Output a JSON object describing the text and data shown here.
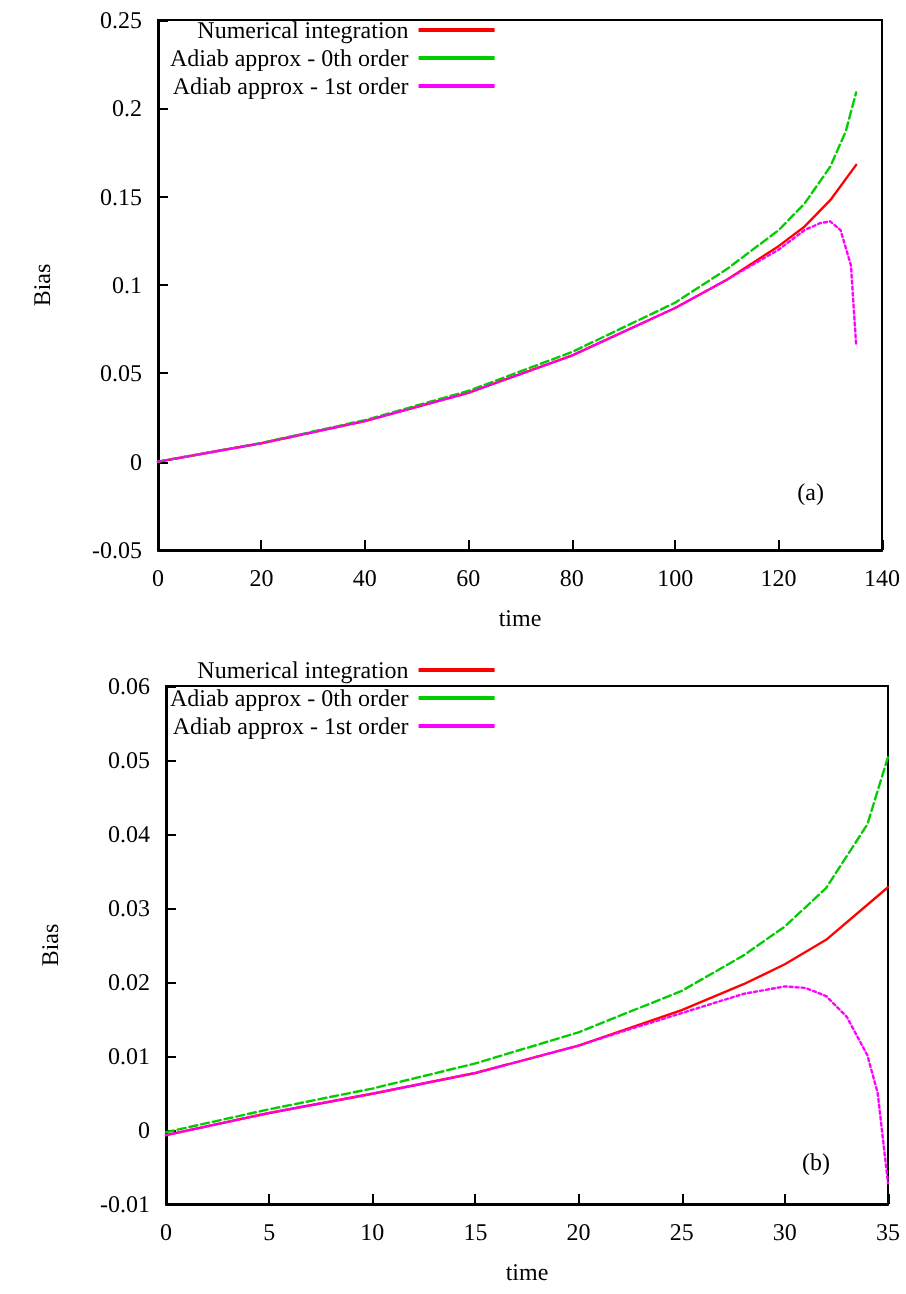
{
  "chart_data": [
    {
      "type": "line",
      "xlabel": "time",
      "ylabel": "Bias",
      "annotations": [
        "(a)"
      ],
      "xlim": [
        0,
        140
      ],
      "ylim": [
        -0.05,
        0.25
      ],
      "xticks": [
        0,
        20,
        40,
        60,
        80,
        100,
        120,
        140
      ],
      "yticks": [
        -0.05,
        0,
        0.05,
        0.1,
        0.15,
        0.2,
        0.25
      ],
      "grid": false,
      "legend": "top",
      "marker": "none",
      "series": [
        {
          "name": "Numerical integration",
          "color": "#ff0000",
          "line_style": "solid",
          "x": [
            0,
            20,
            40,
            60,
            80,
            100,
            110,
            120,
            125,
            130,
            135
          ],
          "values": [
            0,
            0.0104,
            0.023,
            0.039,
            0.06,
            0.087,
            0.103,
            0.122,
            0.133,
            0.148,
            0.168
          ]
        },
        {
          "name": "Adiab approx - 0th order",
          "color": "#00cc00",
          "line_style": "dashed",
          "x": [
            0,
            20,
            40,
            60,
            80,
            100,
            110,
            120,
            125,
            130,
            133,
            135
          ],
          "values": [
            0,
            0.0106,
            0.0235,
            0.04,
            0.062,
            0.09,
            0.109,
            0.131,
            0.146,
            0.167,
            0.187,
            0.209
          ]
        },
        {
          "name": "Adiab approx - 1st order",
          "color": "#ff00ff",
          "line_style": "dotted",
          "x": [
            0,
            20,
            40,
            60,
            80,
            100,
            110,
            120,
            125,
            128,
            130,
            132,
            134,
            135
          ],
          "values": [
            0,
            0.0104,
            0.023,
            0.039,
            0.06,
            0.087,
            0.103,
            0.12,
            0.131,
            0.135,
            0.136,
            0.131,
            0.111,
            0.066
          ]
        }
      ]
    },
    {
      "type": "line",
      "xlabel": "time",
      "ylabel": "Bias",
      "annotations": [
        "(b)"
      ],
      "xlim": [
        0,
        35
      ],
      "ylim": [
        -0.01,
        0.06
      ],
      "xticks": [
        0,
        5,
        10,
        15,
        20,
        25,
        30,
        35
      ],
      "yticks": [
        -0.01,
        0,
        0.01,
        0.02,
        0.03,
        0.04,
        0.05,
        0.06
      ],
      "grid": false,
      "legend": "top",
      "marker": "none",
      "series": [
        {
          "name": "Numerical integration",
          "color": "#ff0000",
          "line_style": "solid",
          "x": [
            0,
            5,
            10,
            15,
            20,
            25,
            28,
            30,
            32,
            35
          ],
          "values": [
            -0.0007,
            0.0023,
            0.0049,
            0.0077,
            0.0114,
            0.0162,
            0.0197,
            0.0224,
            0.0257,
            0.0328
          ]
        },
        {
          "name": "Adiab approx - 0th order",
          "color": "#00cc00",
          "line_style": "dashed",
          "x": [
            0,
            5,
            10,
            15,
            20,
            25,
            28,
            30,
            32,
            34,
            35
          ],
          "values": [
            -0.0003,
            0.0028,
            0.0056,
            0.009,
            0.0132,
            0.0188,
            0.0236,
            0.0275,
            0.0327,
            0.0413,
            0.0504
          ]
        },
        {
          "name": "Adiab approx - 1st order",
          "color": "#ff00ff",
          "line_style": "dotted",
          "x": [
            0,
            5,
            10,
            15,
            20,
            22,
            25,
            28,
            30,
            31,
            32,
            33,
            34,
            34.5,
            35
          ],
          "values": [
            -0.0007,
            0.0023,
            0.0049,
            0.0077,
            0.0114,
            0.0132,
            0.0158,
            0.0184,
            0.0194,
            0.0192,
            0.0181,
            0.0153,
            0.0101,
            0.005,
            -0.0072
          ]
        }
      ]
    }
  ]
}
